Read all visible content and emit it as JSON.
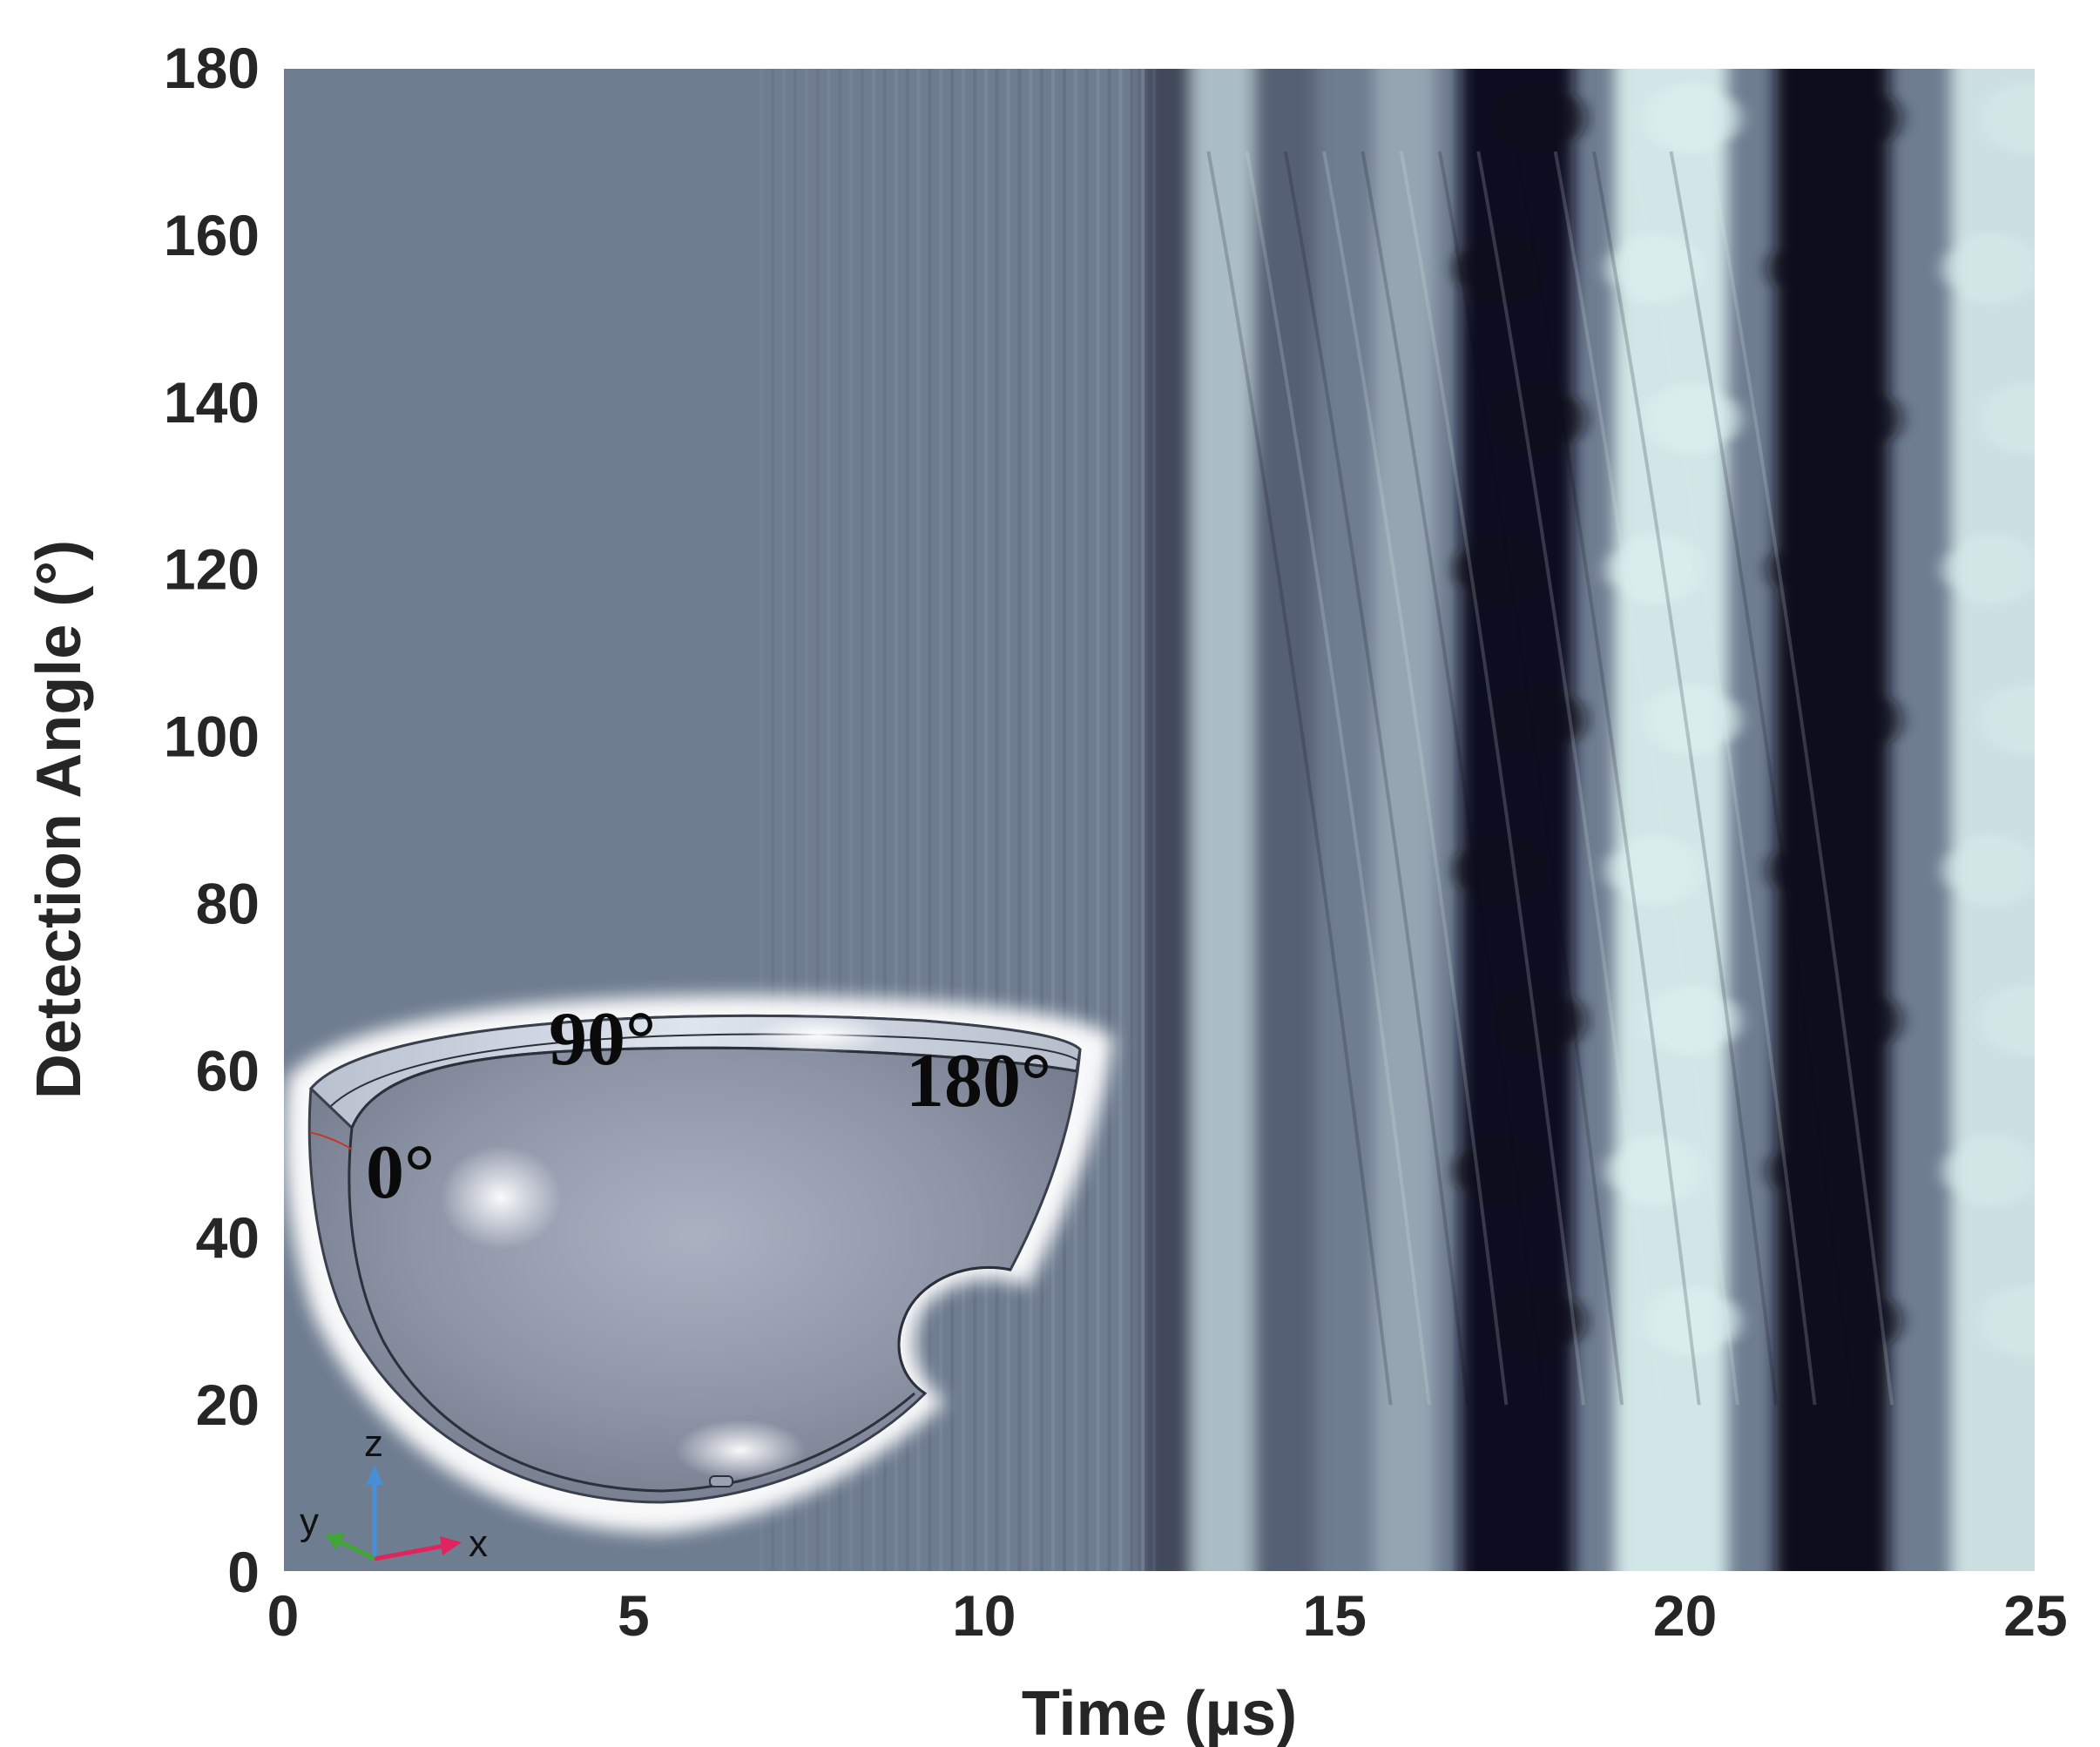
{
  "chart_data": {
    "type": "heatmap",
    "title": "",
    "xlabel": "Time (µs)",
    "ylabel": "Detection Angle (°)",
    "xlim": [
      0,
      25
    ],
    "ylim": [
      0,
      180
    ],
    "xticks": [
      0,
      5,
      10,
      15,
      20,
      25
    ],
    "yticks": [
      0,
      20,
      40,
      60,
      80,
      100,
      120,
      140,
      160,
      180
    ],
    "grid": false,
    "colorbar": false,
    "colormap": {
      "negative": "#0b0b1c",
      "zero": "#6f7d91",
      "positive": "#dcf2ef"
    },
    "wave_field": {
      "first_arrival_us": 6.8,
      "bands": [
        {
          "time_us": 12.7,
          "amplitude": -0.45
        },
        {
          "time_us": 13.4,
          "amplitude": 0.55
        },
        {
          "time_us": 14.3,
          "amplitude": -0.25
        },
        {
          "time_us": 16.0,
          "amplitude": 0.35
        },
        {
          "time_us": 17.6,
          "amplitude": -0.95
        },
        {
          "time_us": 19.8,
          "amplitude": 0.9
        },
        {
          "time_us": 22.1,
          "amplitude": -1.0
        },
        {
          "time_us": 24.6,
          "amplitude": 0.85
        }
      ]
    },
    "inset": {
      "description_labels": [
        "0°",
        "90°",
        "180°"
      ],
      "axes_triad": [
        "x",
        "y",
        "z"
      ]
    }
  },
  "axis_titles": {
    "x": "Time (µs)",
    "y": "Detection Angle (°)"
  },
  "x_tick_labels": [
    "0",
    "5",
    "10",
    "15",
    "20",
    "25"
  ],
  "y_tick_labels": [
    "0",
    "20",
    "40",
    "60",
    "80",
    "100",
    "120",
    "140",
    "160",
    "180"
  ],
  "inset_labels": {
    "deg0": "0°",
    "deg90": "90°",
    "deg180": "180°",
    "triad_x": "x",
    "triad_y": "y",
    "triad_z": "z"
  },
  "colors": {
    "triad_x": "#e0245e",
    "triad_y": "#3fa535",
    "triad_z": "#4a8fd6",
    "inset_edge": "#3a3f4c"
  }
}
